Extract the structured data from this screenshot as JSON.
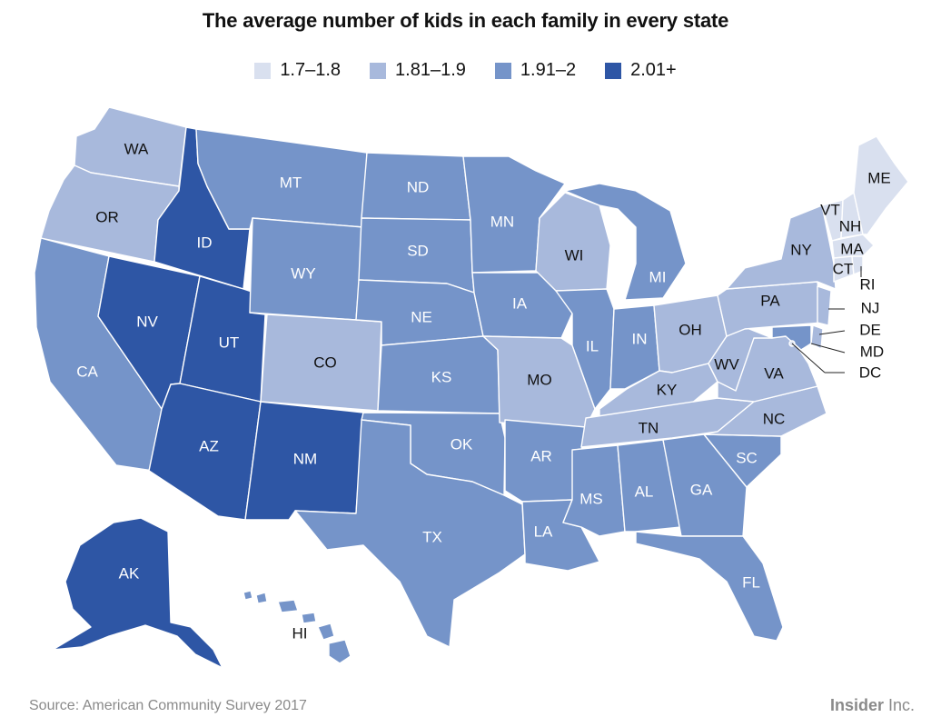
{
  "title": "The average number of kids in each family in every state",
  "legend": [
    {
      "label": "1.7–1.8",
      "color": "#d9e0ef"
    },
    {
      "label": "1.81–1.9",
      "color": "#a8b9dc"
    },
    {
      "label": "1.91–2",
      "color": "#7594c9"
    },
    {
      "label": "2.01+",
      "color": "#2e56a5"
    }
  ],
  "source": "Source: American Community Survey 2017",
  "brand": {
    "bold": "Insider",
    "light": " Inc."
  },
  "states": {
    "WA": {
      "label": "WA",
      "bin": 1
    },
    "OR": {
      "label": "OR",
      "bin": 1
    },
    "CA": {
      "label": "CA",
      "bin": 2
    },
    "ID": {
      "label": "ID",
      "bin": 3
    },
    "NV": {
      "label": "NV",
      "bin": 3
    },
    "UT": {
      "label": "UT",
      "bin": 3
    },
    "AZ": {
      "label": "AZ",
      "bin": 3
    },
    "NM": {
      "label": "NM",
      "bin": 3
    },
    "AK": {
      "label": "AK",
      "bin": 3
    },
    "MT": {
      "label": "MT",
      "bin": 2
    },
    "WY": {
      "label": "WY",
      "bin": 2
    },
    "CO": {
      "label": "CO",
      "bin": 1
    },
    "ND": {
      "label": "ND",
      "bin": 2
    },
    "SD": {
      "label": "SD",
      "bin": 2
    },
    "NE": {
      "label": "NE",
      "bin": 2
    },
    "KS": {
      "label": "KS",
      "bin": 2
    },
    "OK": {
      "label": "OK",
      "bin": 2
    },
    "TX": {
      "label": "TX",
      "bin": 2
    },
    "MN": {
      "label": "MN",
      "bin": 2
    },
    "IA": {
      "label": "IA",
      "bin": 2
    },
    "MO": {
      "label": "MO",
      "bin": 1
    },
    "AR": {
      "label": "AR",
      "bin": 2
    },
    "LA": {
      "label": "LA",
      "bin": 2
    },
    "WI": {
      "label": "WI",
      "bin": 1
    },
    "IL": {
      "label": "IL",
      "bin": 2
    },
    "MI": {
      "label": "MI",
      "bin": 2
    },
    "IN": {
      "label": "IN",
      "bin": 2
    },
    "OH": {
      "label": "OH",
      "bin": 1
    },
    "KY": {
      "label": "KY",
      "bin": 1
    },
    "TN": {
      "label": "TN",
      "bin": 1
    },
    "MS": {
      "label": "MS",
      "bin": 2
    },
    "AL": {
      "label": "AL",
      "bin": 2
    },
    "GA": {
      "label": "GA",
      "bin": 2
    },
    "FL": {
      "label": "FL",
      "bin": 2
    },
    "SC": {
      "label": "SC",
      "bin": 2
    },
    "NC": {
      "label": "NC",
      "bin": 1
    },
    "VA": {
      "label": "VA",
      "bin": 1
    },
    "WV": {
      "label": "WV",
      "bin": 1
    },
    "PA": {
      "label": "PA",
      "bin": 1
    },
    "NY": {
      "label": "NY",
      "bin": 1
    },
    "ME": {
      "label": "ME",
      "bin": 0
    },
    "VT": {
      "label": "VT",
      "bin": 0
    },
    "NH": {
      "label": "NH",
      "bin": 0
    },
    "MA": {
      "label": "MA",
      "bin": 0
    },
    "CT": {
      "label": "CT",
      "bin": 0
    },
    "RI": {
      "label": "RI",
      "bin": 0
    },
    "NJ": {
      "label": "NJ",
      "bin": 1
    },
    "DE": {
      "label": "DE",
      "bin": 1
    },
    "MD": {
      "label": "MD",
      "bin": 2
    },
    "DC": {
      "label": "DC",
      "bin": 0
    },
    "HI": {
      "label": "HI",
      "bin": 2
    }
  }
}
